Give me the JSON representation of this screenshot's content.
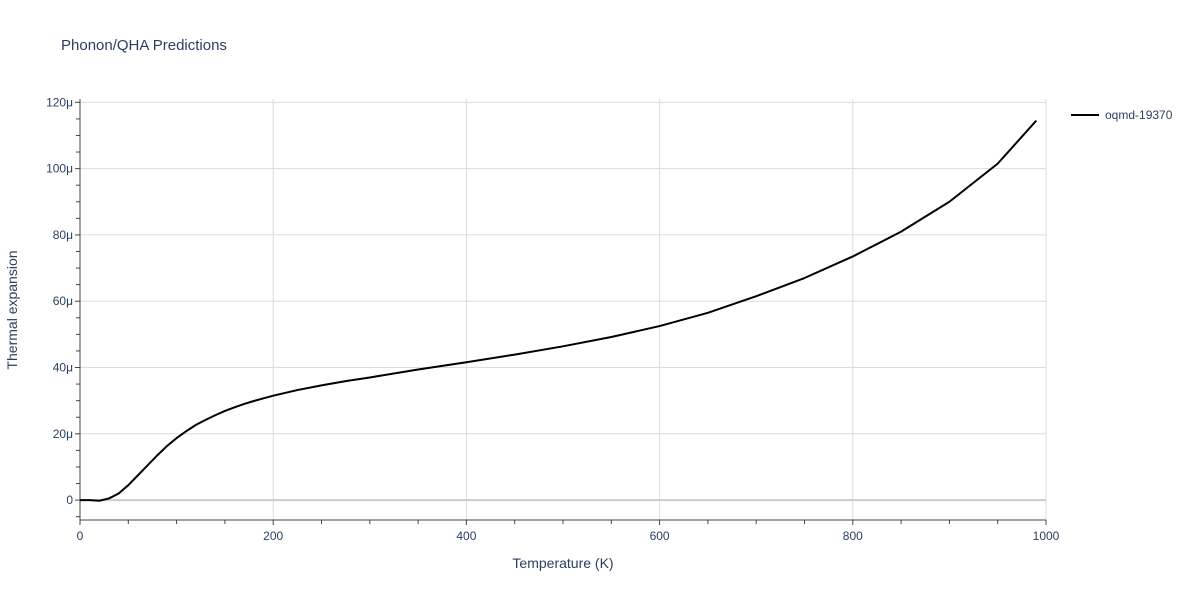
{
  "chart_data": {
    "type": "line",
    "title": "Phonon/QHA Predictions",
    "xlabel": "Temperature (K)",
    "ylabel": "Thermal expansion",
    "xlim": [
      0,
      1000
    ],
    "ylim": [
      -6,
      121
    ],
    "x_ticks": [
      0,
      200,
      400,
      600,
      800,
      1000
    ],
    "x_tick_labels": [
      "0",
      "200",
      "400",
      "600",
      "800",
      "1000"
    ],
    "y_ticks": [
      0,
      20,
      40,
      60,
      80,
      100,
      120
    ],
    "y_tick_labels": [
      "0",
      "20μ",
      "40μ",
      "60μ",
      "80μ",
      "100μ",
      "120μ"
    ],
    "grid": true,
    "legend_position": "top-right",
    "series": [
      {
        "name": "oqmd-19370",
        "color": "#000000",
        "x": [
          0,
          10,
          20,
          30,
          40,
          50,
          60,
          70,
          80,
          90,
          100,
          110,
          120,
          130,
          140,
          150,
          160,
          170,
          180,
          190,
          200,
          225,
          250,
          275,
          300,
          350,
          400,
          450,
          500,
          550,
          600,
          650,
          700,
          750,
          800,
          850,
          900,
          950,
          990
        ],
        "y": [
          0,
          0,
          -0.2,
          0.5,
          2,
          4.5,
          7.5,
          10.5,
          13.5,
          16.3,
          18.7,
          20.8,
          22.7,
          24.2,
          25.6,
          26.9,
          28.0,
          29.0,
          29.9,
          30.7,
          31.5,
          33.2,
          34.6,
          35.9,
          37.0,
          39.4,
          41.6,
          43.9,
          46.4,
          49.2,
          52.5,
          56.5,
          61.5,
          67.0,
          73.5,
          81.0,
          90.0,
          101.5,
          114.5
        ]
      }
    ]
  }
}
